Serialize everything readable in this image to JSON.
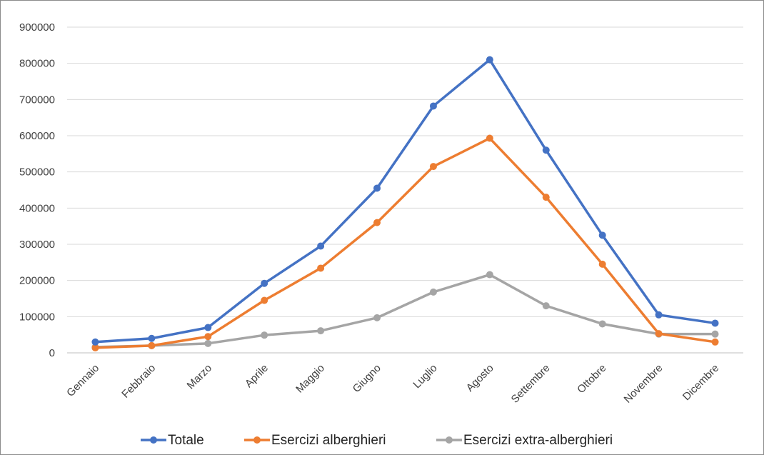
{
  "chart_data": {
    "type": "line",
    "title": "",
    "xlabel": "",
    "ylabel": "",
    "categories": [
      "Gennaio",
      "Febbraio",
      "Marzo",
      "Aprile",
      "Maggio",
      "Giugno",
      "Luglio",
      "Agosto",
      "Settembre",
      "Ottobre",
      "Novembre",
      "Dicembre"
    ],
    "ylim": [
      0,
      900000
    ],
    "yticks": [
      "0",
      "100000",
      "200000",
      "300000",
      "400000",
      "500000",
      "600000",
      "700000",
      "800000",
      "900000"
    ],
    "grid": true,
    "legend_position": "bottom",
    "series": [
      {
        "name": "Totale",
        "color": "#4472C4",
        "values": [
          30000,
          40000,
          70000,
          192000,
          295000,
          455000,
          682000,
          810000,
          560000,
          325000,
          105000,
          82000
        ]
      },
      {
        "name": "Esercizi alberghieri",
        "color": "#ED7D31",
        "values": [
          14000,
          20000,
          45000,
          145000,
          234000,
          360000,
          515000,
          593000,
          430000,
          245000,
          53000,
          30000
        ]
      },
      {
        "name": "Esercizi extra-alberghieri",
        "color": "#A5A5A5",
        "values": [
          16000,
          20000,
          26000,
          49000,
          61000,
          97000,
          168000,
          216000,
          130000,
          80000,
          52000,
          52000
        ]
      }
    ]
  }
}
